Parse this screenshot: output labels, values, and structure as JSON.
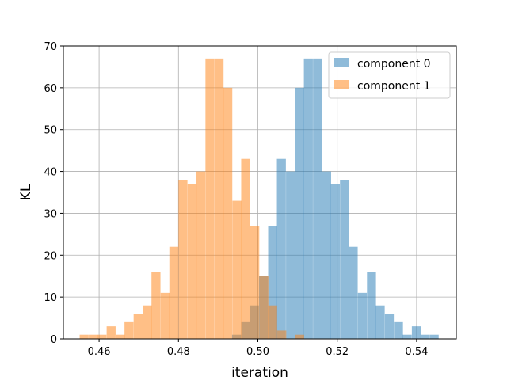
{
  "chart_data": {
    "type": "histogram",
    "title": "",
    "xlabel": "iteration",
    "ylabel": "KL",
    "xlim": [
      0.451,
      0.55
    ],
    "ylim": [
      0,
      70
    ],
    "xticks": [
      "0.46",
      "0.48",
      "0.50",
      "0.52",
      "0.54"
    ],
    "yticks": [
      "0",
      "10",
      "20",
      "30",
      "40",
      "50",
      "60",
      "70"
    ],
    "grid": true,
    "legend_position": "top-right",
    "bin_width": 0.00226,
    "series": [
      {
        "name": "component 0",
        "color": "#1f77b4",
        "opacity": 0.5,
        "bins": [
          {
            "x": 0.4935,
            "count": 1
          },
          {
            "x": 0.4958,
            "count": 4
          },
          {
            "x": 0.498,
            "count": 8
          },
          {
            "x": 0.5003,
            "count": 15
          },
          {
            "x": 0.5026,
            "count": 27
          },
          {
            "x": 0.5048,
            "count": 43
          },
          {
            "x": 0.5071,
            "count": 40
          },
          {
            "x": 0.5094,
            "count": 60
          },
          {
            "x": 0.5116,
            "count": 67
          },
          {
            "x": 0.5139,
            "count": 67
          },
          {
            "x": 0.5162,
            "count": 40
          },
          {
            "x": 0.5184,
            "count": 37
          },
          {
            "x": 0.5207,
            "count": 38
          },
          {
            "x": 0.5229,
            "count": 22
          },
          {
            "x": 0.5252,
            "count": 11
          },
          {
            "x": 0.5275,
            "count": 16
          },
          {
            "x": 0.5297,
            "count": 8
          },
          {
            "x": 0.532,
            "count": 6
          },
          {
            "x": 0.5343,
            "count": 4
          },
          {
            "x": 0.5365,
            "count": 1
          },
          {
            "x": 0.5388,
            "count": 3
          },
          {
            "x": 0.541,
            "count": 1
          },
          {
            "x": 0.5433,
            "count": 1
          }
        ]
      },
      {
        "name": "component 1",
        "color": "#ff7f0e",
        "opacity": 0.5,
        "bins": [
          {
            "x": 0.4551,
            "count": 1
          },
          {
            "x": 0.4574,
            "count": 1
          },
          {
            "x": 0.4596,
            "count": 1
          },
          {
            "x": 0.4619,
            "count": 3
          },
          {
            "x": 0.4642,
            "count": 1
          },
          {
            "x": 0.4664,
            "count": 4
          },
          {
            "x": 0.4687,
            "count": 6
          },
          {
            "x": 0.471,
            "count": 8
          },
          {
            "x": 0.4732,
            "count": 16
          },
          {
            "x": 0.4755,
            "count": 11
          },
          {
            "x": 0.4777,
            "count": 22
          },
          {
            "x": 0.48,
            "count": 38
          },
          {
            "x": 0.4823,
            "count": 37
          },
          {
            "x": 0.4845,
            "count": 40
          },
          {
            "x": 0.4868,
            "count": 67
          },
          {
            "x": 0.4891,
            "count": 67
          },
          {
            "x": 0.4913,
            "count": 60
          },
          {
            "x": 0.4936,
            "count": 33
          },
          {
            "x": 0.4958,
            "count": 43
          },
          {
            "x": 0.4981,
            "count": 27
          },
          {
            "x": 0.5004,
            "count": 15
          },
          {
            "x": 0.5026,
            "count": 8
          },
          {
            "x": 0.5049,
            "count": 2
          },
          {
            "x": 0.5094,
            "count": 1
          }
        ]
      }
    ]
  }
}
